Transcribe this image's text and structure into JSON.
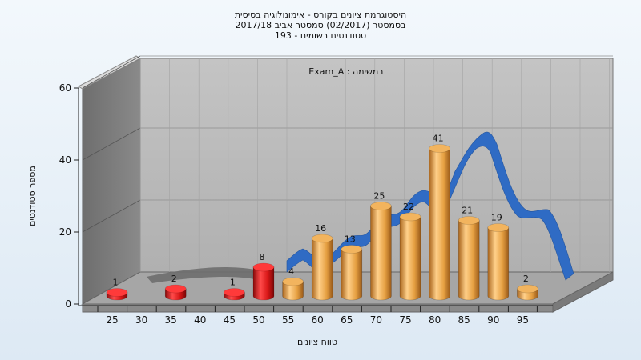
{
  "chart_data": {
    "type": "bar",
    "title_lines": [
      "היסטוגרמת ציונים בקורס - אימונולוגיה בסיסית",
      "בסמסטר  (02/2017)  סמסטר אביב 2017/18",
      "193 - סטודנטים רשומים"
    ],
    "inner_label": "Exam_A : במשימה",
    "xlabel": "טווח ציונים",
    "ylabel": "מספר סטודנטים",
    "x_tick_labels": [
      "25",
      "30",
      "35",
      "40",
      "45",
      "50",
      "55",
      "60",
      "65",
      "70",
      "75",
      "80",
      "85",
      "90",
      "95"
    ],
    "y_tick_labels": [
      "0",
      "20",
      "40",
      "60"
    ],
    "ylim": [
      0,
      60
    ],
    "categories": [
      25,
      35,
      45,
      50,
      55,
      60,
      65,
      70,
      75,
      80,
      85,
      90,
      95
    ],
    "values": [
      1,
      2,
      1,
      8,
      4,
      16,
      13,
      25,
      22,
      41,
      21,
      19,
      2
    ],
    "bar_colors": [
      "red",
      "red",
      "red",
      "red",
      "orange",
      "orange",
      "orange",
      "orange",
      "orange",
      "orange",
      "orange",
      "orange",
      "orange"
    ],
    "curve": "smoothed distribution ribbon (grey below passing range, blue above)",
    "colors": {
      "bar_red": "#e01c1c",
      "bar_orange": "#e8a040",
      "ribbon_blue": "#2e6bbf",
      "ribbon_grey": "#707070",
      "back_wall": "#b8b8b8",
      "side_wall": "#7a7a7a",
      "floor": "#9c9c9c"
    }
  }
}
